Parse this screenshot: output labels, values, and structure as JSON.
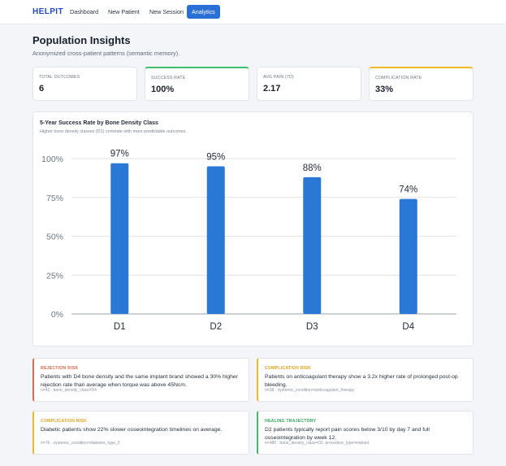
{
  "nav": {
    "brand": "HELPIT",
    "items": [
      {
        "label": "Dashboard",
        "active": false
      },
      {
        "label": "New Patient",
        "active": false
      },
      {
        "label": "New Session",
        "active": false
      },
      {
        "label": "Analytics",
        "active": true
      }
    ]
  },
  "page": {
    "title": "Population Insights",
    "subtitle": "Anonymized cross-patient patterns (semantic memory)."
  },
  "stats": [
    {
      "label": "TOTAL OUTCOMES",
      "value": "6"
    },
    {
      "label": "SUCCESS RATE",
      "value": "100%"
    },
    {
      "label": "AVG PAIN (7D)",
      "value": "2.17"
    },
    {
      "label": "COMPLICATION RATE",
      "value": "33%"
    }
  ],
  "chart": {
    "title": "5-Year Success Rate by Bone Density Class",
    "subtitle": "Higher bone density classes (D1) correlate with more predictable outcomes."
  },
  "chart_data": {
    "type": "bar",
    "categories": [
      "D1",
      "D2",
      "D3",
      "D4"
    ],
    "values": [
      97,
      95,
      88,
      74
    ],
    "data_labels": [
      "97%",
      "95%",
      "88%",
      "74%"
    ],
    "y_ticks": [
      "0%",
      "25%",
      "50%",
      "75%",
      "100%"
    ],
    "ylim": [
      0,
      100
    ],
    "grid": true,
    "bar_color": "#2a78d6"
  },
  "insights": [
    {
      "tag": "REJECTION RISK",
      "text": "Patients with D4 bone density and the same implant brand showed a 30% higher rejection rate than average when torque was above 45Ncm.",
      "meta": "n=42 · bone_density_class=D4",
      "color": "#e0674e"
    },
    {
      "tag": "COMPLICATION RISK",
      "text": "Patients on anticoagulant therapy show a 3.2x higher rate of prolonged post-op bleeding.",
      "meta": "n=38 · systemic_condition=anticoagulant_therapy",
      "color": "#e3a21a"
    },
    {
      "tag": "COMPLICATION RISK",
      "text": "Diabetic patients show 22% slower osseointegration timelines on average.",
      "meta": "n=76 · systemic_condition=diabetes_type_2",
      "color": "#e3a21a"
    },
    {
      "tag": "HEALING TRAJECTORY",
      "text": "D2 patients typically report pain scores below 3/10 by day 7 and full osseointegration by week 12.",
      "meta": "n=480 · bone_density_class=D2, procedure_type=implant",
      "color": "#33a85d"
    }
  ]
}
